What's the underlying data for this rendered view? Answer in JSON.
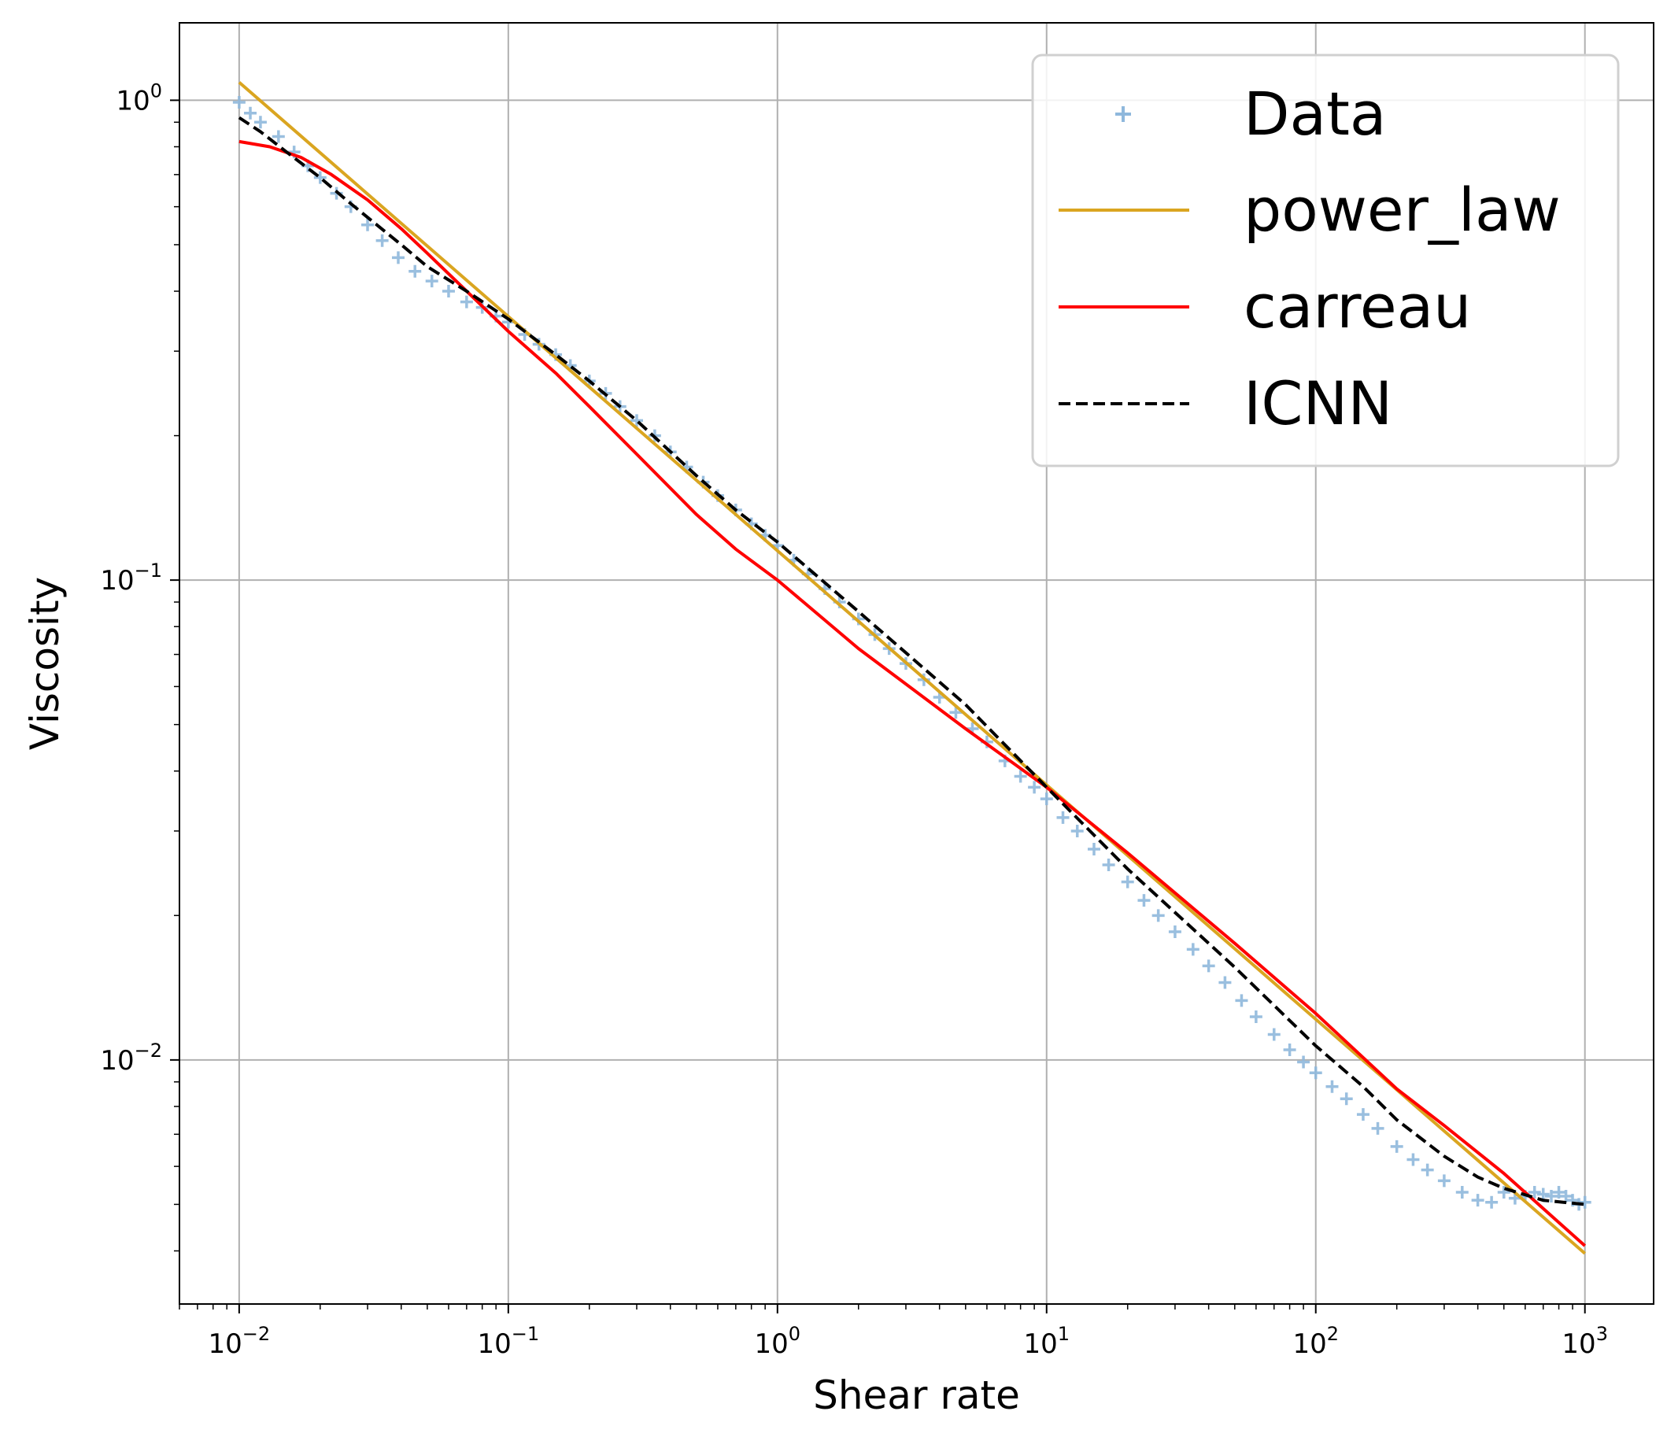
{
  "chart_data": {
    "type": "line",
    "xlabel": "Shear rate",
    "ylabel": "Viscosity",
    "x_scale": "log",
    "y_scale": "log",
    "xlim": [
      0.006,
      1800
    ],
    "ylim": [
      0.0031,
      1.45
    ],
    "grid": true,
    "legend_position": "top-right",
    "x_ticks": [
      {
        "value": 0.01,
        "base": "10",
        "exp": "−2"
      },
      {
        "value": 0.1,
        "base": "10",
        "exp": "−1"
      },
      {
        "value": 1,
        "base": "10",
        "exp": "0"
      },
      {
        "value": 10,
        "base": "10",
        "exp": "1"
      },
      {
        "value": 100,
        "base": "10",
        "exp": "2"
      },
      {
        "value": 1000,
        "base": "10",
        "exp": "3"
      }
    ],
    "y_ticks": [
      {
        "value": 1,
        "base": "10",
        "exp": "0"
      },
      {
        "value": 0.1,
        "base": "10",
        "exp": "−1"
      },
      {
        "value": 0.01,
        "base": "10",
        "exp": "−2"
      }
    ],
    "series": [
      {
        "name": "Data",
        "style": "marker-plus",
        "color": "#8fb8dc",
        "x": [
          0.01,
          0.011,
          0.012,
          0.014,
          0.016,
          0.018,
          0.02,
          0.023,
          0.026,
          0.03,
          0.034,
          0.039,
          0.045,
          0.052,
          0.06,
          0.07,
          0.08,
          0.09,
          0.1,
          0.115,
          0.13,
          0.15,
          0.17,
          0.2,
          0.23,
          0.26,
          0.3,
          0.35,
          0.4,
          0.46,
          0.53,
          0.6,
          0.7,
          0.8,
          0.9,
          1.0,
          1.15,
          1.3,
          1.5,
          1.7,
          2.0,
          2.3,
          2.6,
          3.0,
          3.5,
          4.0,
          4.6,
          5.3,
          6.0,
          7.0,
          8.0,
          9.0,
          10.0,
          11.5,
          13,
          15,
          17,
          20,
          23,
          26,
          30,
          35,
          40,
          46,
          53,
          60,
          70,
          80,
          90,
          100,
          115,
          130,
          150,
          170,
          200,
          230,
          260,
          300,
          350,
          400,
          450,
          500,
          550,
          600,
          650,
          700,
          750,
          800,
          850,
          900,
          950,
          1000
        ],
        "y": [
          0.99,
          0.94,
          0.9,
          0.84,
          0.78,
          0.73,
          0.69,
          0.64,
          0.6,
          0.55,
          0.51,
          0.47,
          0.44,
          0.42,
          0.4,
          0.38,
          0.37,
          0.355,
          0.345,
          0.325,
          0.31,
          0.295,
          0.28,
          0.26,
          0.245,
          0.23,
          0.215,
          0.2,
          0.185,
          0.172,
          0.16,
          0.15,
          0.14,
          0.131,
          0.124,
          0.118,
          0.11,
          0.103,
          0.096,
          0.09,
          0.083,
          0.077,
          0.072,
          0.067,
          0.062,
          0.057,
          0.053,
          0.049,
          0.046,
          0.042,
          0.039,
          0.037,
          0.035,
          0.032,
          0.03,
          0.0275,
          0.0255,
          0.0235,
          0.0215,
          0.02,
          0.0185,
          0.017,
          0.0157,
          0.0145,
          0.0133,
          0.0123,
          0.0113,
          0.0105,
          0.0099,
          0.0094,
          0.0088,
          0.0083,
          0.0077,
          0.0072,
          0.0066,
          0.0062,
          0.0059,
          0.0056,
          0.0053,
          0.0051,
          0.00505,
          0.0053,
          0.00515,
          0.0052,
          0.0053,
          0.00525,
          0.0052,
          0.0053,
          0.0052,
          0.0051,
          0.005,
          0.00505
        ]
      },
      {
        "name": "power_law",
        "style": "line",
        "color": "#daa520",
        "x": [
          0.01,
          1000
        ],
        "y": [
          1.09,
          0.00395
        ]
      },
      {
        "name": "carreau",
        "style": "line",
        "color": "#ff0000",
        "x": [
          0.01,
          0.013,
          0.017,
          0.022,
          0.03,
          0.04,
          0.05,
          0.07,
          0.1,
          0.15,
          0.2,
          0.3,
          0.5,
          0.7,
          1.0,
          2.0,
          5.0,
          10,
          20,
          50,
          100,
          200,
          300,
          500,
          1000
        ],
        "y": [
          0.82,
          0.8,
          0.76,
          0.7,
          0.62,
          0.54,
          0.48,
          0.4,
          0.33,
          0.27,
          0.23,
          0.183,
          0.137,
          0.116,
          0.1,
          0.072,
          0.049,
          0.037,
          0.027,
          0.0175,
          0.0125,
          0.0087,
          0.0073,
          0.0058,
          0.0041
        ]
      },
      {
        "name": "ICNN",
        "style": "dashed",
        "color": "#000000",
        "x": [
          0.01,
          0.012,
          0.015,
          0.02,
          0.025,
          0.03,
          0.04,
          0.05,
          0.07,
          0.1,
          0.15,
          0.2,
          0.3,
          0.5,
          0.7,
          1.0,
          2.0,
          5.0,
          10,
          20,
          50,
          100,
          150,
          200,
          300,
          400,
          500,
          700,
          1000
        ],
        "y": [
          0.92,
          0.86,
          0.78,
          0.69,
          0.62,
          0.57,
          0.5,
          0.45,
          0.4,
          0.35,
          0.295,
          0.26,
          0.215,
          0.165,
          0.14,
          0.12,
          0.086,
          0.055,
          0.037,
          0.025,
          0.0156,
          0.0107,
          0.0088,
          0.0075,
          0.0063,
          0.0057,
          0.0054,
          0.0051,
          0.005
        ]
      }
    ]
  }
}
